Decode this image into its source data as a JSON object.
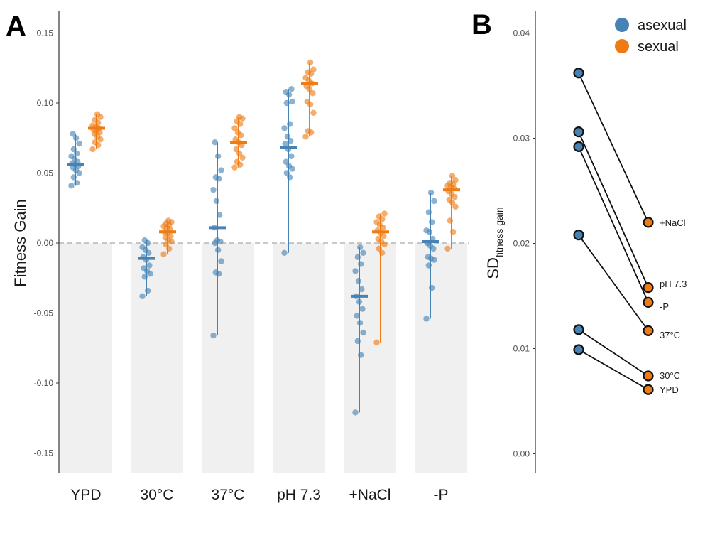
{
  "chart_data": [
    {
      "panel": "A",
      "type": "scatter",
      "ylabel": "Fitness Gain",
      "xlabel": "",
      "ylim": [
        -0.165,
        0.165
      ],
      "yticks": [
        -0.15,
        -0.1,
        -0.05,
        0.0,
        0.05,
        0.1,
        0.15
      ],
      "ytick_labels": [
        "-0.15",
        "-0.10",
        "-0.05",
        "0.00",
        "0.05",
        "0.10",
        "0.15"
      ],
      "reference_line": 0,
      "categories": [
        "YPD",
        "30°C",
        "37°C",
        "pH 7.3",
        "+NaCl",
        "-P"
      ],
      "series": [
        {
          "name": "asexual",
          "color": "#4682b4",
          "groups": [
            {
              "category": "YPD",
              "mean": 0.056,
              "min": 0.041,
              "max": 0.078,
              "values": [
                0.041,
                0.043,
                0.047,
                0.05,
                0.052,
                0.054,
                0.055,
                0.056,
                0.057,
                0.058,
                0.06,
                0.062,
                0.064,
                0.067,
                0.071,
                0.075,
                0.078
              ]
            },
            {
              "category": "30°C",
              "mean": -0.011,
              "min": -0.038,
              "max": 0.002,
              "values": [
                -0.038,
                -0.034,
                -0.024,
                -0.022,
                -0.02,
                -0.018,
                -0.016,
                -0.012,
                -0.01,
                -0.007,
                -0.005,
                -0.003,
                0.0,
                0.002
              ]
            },
            {
              "category": "37°C",
              "mean": 0.011,
              "min": -0.066,
              "max": 0.072,
              "values": [
                -0.066,
                -0.022,
                -0.021,
                -0.013,
                -0.005,
                0.0,
                0.001,
                0.002,
                0.011,
                0.02,
                0.03,
                0.038,
                0.046,
                0.047,
                0.052,
                0.062,
                0.072
              ]
            },
            {
              "category": "pH 7.3",
              "mean": 0.068,
              "min": -0.007,
              "max": 0.11,
              "values": [
                -0.007,
                0.047,
                0.05,
                0.053,
                0.055,
                0.058,
                0.062,
                0.067,
                0.071,
                0.073,
                0.076,
                0.082,
                0.085,
                0.1,
                0.101,
                0.106,
                0.108,
                0.11
              ]
            },
            {
              "category": "+NaCl",
              "mean": -0.038,
              "min": -0.121,
              "max": -0.003,
              "values": [
                -0.121,
                -0.08,
                -0.07,
                -0.064,
                -0.057,
                -0.052,
                -0.047,
                -0.042,
                -0.038,
                -0.033,
                -0.027,
                -0.02,
                -0.015,
                -0.01,
                -0.007,
                -0.003
              ]
            },
            {
              "category": "-P",
              "mean": 0.001,
              "min": -0.054,
              "max": 0.036,
              "values": [
                -0.054,
                -0.032,
                -0.016,
                -0.012,
                -0.011,
                -0.01,
                -0.004,
                -0.002,
                0.0,
                0.003,
                0.008,
                0.009,
                0.015,
                0.022,
                0.03,
                0.036
              ]
            }
          ]
        },
        {
          "name": "sexual",
          "color": "#ee7b14",
          "groups": [
            {
              "category": "YPD",
              "mean": 0.082,
              "min": 0.067,
              "max": 0.092,
              "values": [
                0.067,
                0.07,
                0.072,
                0.074,
                0.076,
                0.078,
                0.079,
                0.08,
                0.081,
                0.082,
                0.083,
                0.084,
                0.086,
                0.088,
                0.09,
                0.092
              ]
            },
            {
              "category": "30°C",
              "mean": 0.008,
              "min": -0.008,
              "max": 0.016,
              "values": [
                -0.008,
                -0.004,
                -0.001,
                0.001,
                0.002,
                0.004,
                0.005,
                0.007,
                0.008,
                0.01,
                0.011,
                0.012,
                0.013,
                0.014,
                0.015,
                0.016
              ]
            },
            {
              "category": "37°C",
              "mean": 0.072,
              "min": 0.054,
              "max": 0.09,
              "values": [
                0.054,
                0.056,
                0.058,
                0.061,
                0.064,
                0.067,
                0.07,
                0.072,
                0.074,
                0.077,
                0.079,
                0.082,
                0.085,
                0.087,
                0.089,
                0.09
              ]
            },
            {
              "category": "pH 7.3",
              "mean": 0.114,
              "min": 0.076,
              "max": 0.129,
              "values": [
                0.076,
                0.079,
                0.08,
                0.093,
                0.099,
                0.101,
                0.107,
                0.11,
                0.112,
                0.114,
                0.116,
                0.118,
                0.121,
                0.122,
                0.124,
                0.129
              ]
            },
            {
              "category": "+NaCl",
              "mean": 0.008,
              "min": -0.071,
              "max": 0.021,
              "values": [
                -0.071,
                -0.007,
                -0.004,
                -0.001,
                0.001,
                0.003,
                0.005,
                0.007,
                0.009,
                0.011,
                0.013,
                0.015,
                0.017,
                0.019,
                0.021
              ]
            },
            {
              "category": "-P",
              "mean": 0.038,
              "min": -0.004,
              "max": 0.048,
              "values": [
                -0.004,
                0.008,
                0.016,
                0.026,
                0.029,
                0.031,
                0.033,
                0.035,
                0.037,
                0.039,
                0.04,
                0.041,
                0.042,
                0.043,
                0.045,
                0.048
              ]
            }
          ]
        }
      ]
    },
    {
      "panel": "B",
      "type": "line",
      "ylabel_main": "SD",
      "ylabel_sub": "fitness gain",
      "ylim": [
        0.0,
        0.0425
      ],
      "yticks": [
        0.0,
        0.01,
        0.02,
        0.03,
        0.04
      ],
      "ytick_labels": [
        "0.00",
        "0.01",
        "0.02",
        "0.03",
        "0.04"
      ],
      "x": [
        "asexual",
        "sexual"
      ],
      "series": [
        {
          "name": "+NaCl",
          "values": [
            0.0362,
            0.022
          ]
        },
        {
          "name": "pH 7.3",
          "values": [
            0.0306,
            0.0158
          ]
        },
        {
          "name": "-P",
          "values": [
            0.0292,
            0.0144
          ]
        },
        {
          "name": "37°C",
          "values": [
            0.0208,
            0.0117
          ]
        },
        {
          "name": "30°C",
          "values": [
            0.0118,
            0.0074
          ]
        },
        {
          "name": "YPD",
          "values": [
            0.0099,
            0.0061
          ]
        }
      ]
    }
  ],
  "figure": {
    "panel_a_letter": "A",
    "panel_b_letter": "B",
    "legend": [
      {
        "label": "asexual",
        "color": "#4682b4"
      },
      {
        "label": "sexual",
        "color": "#ee7b14"
      }
    ],
    "colors": {
      "asexual": "#4682b4",
      "sexual": "#ee7b14",
      "shade": "#f0f0f0",
      "reference_line": "#aaaaaa",
      "axis": "#333333"
    }
  }
}
